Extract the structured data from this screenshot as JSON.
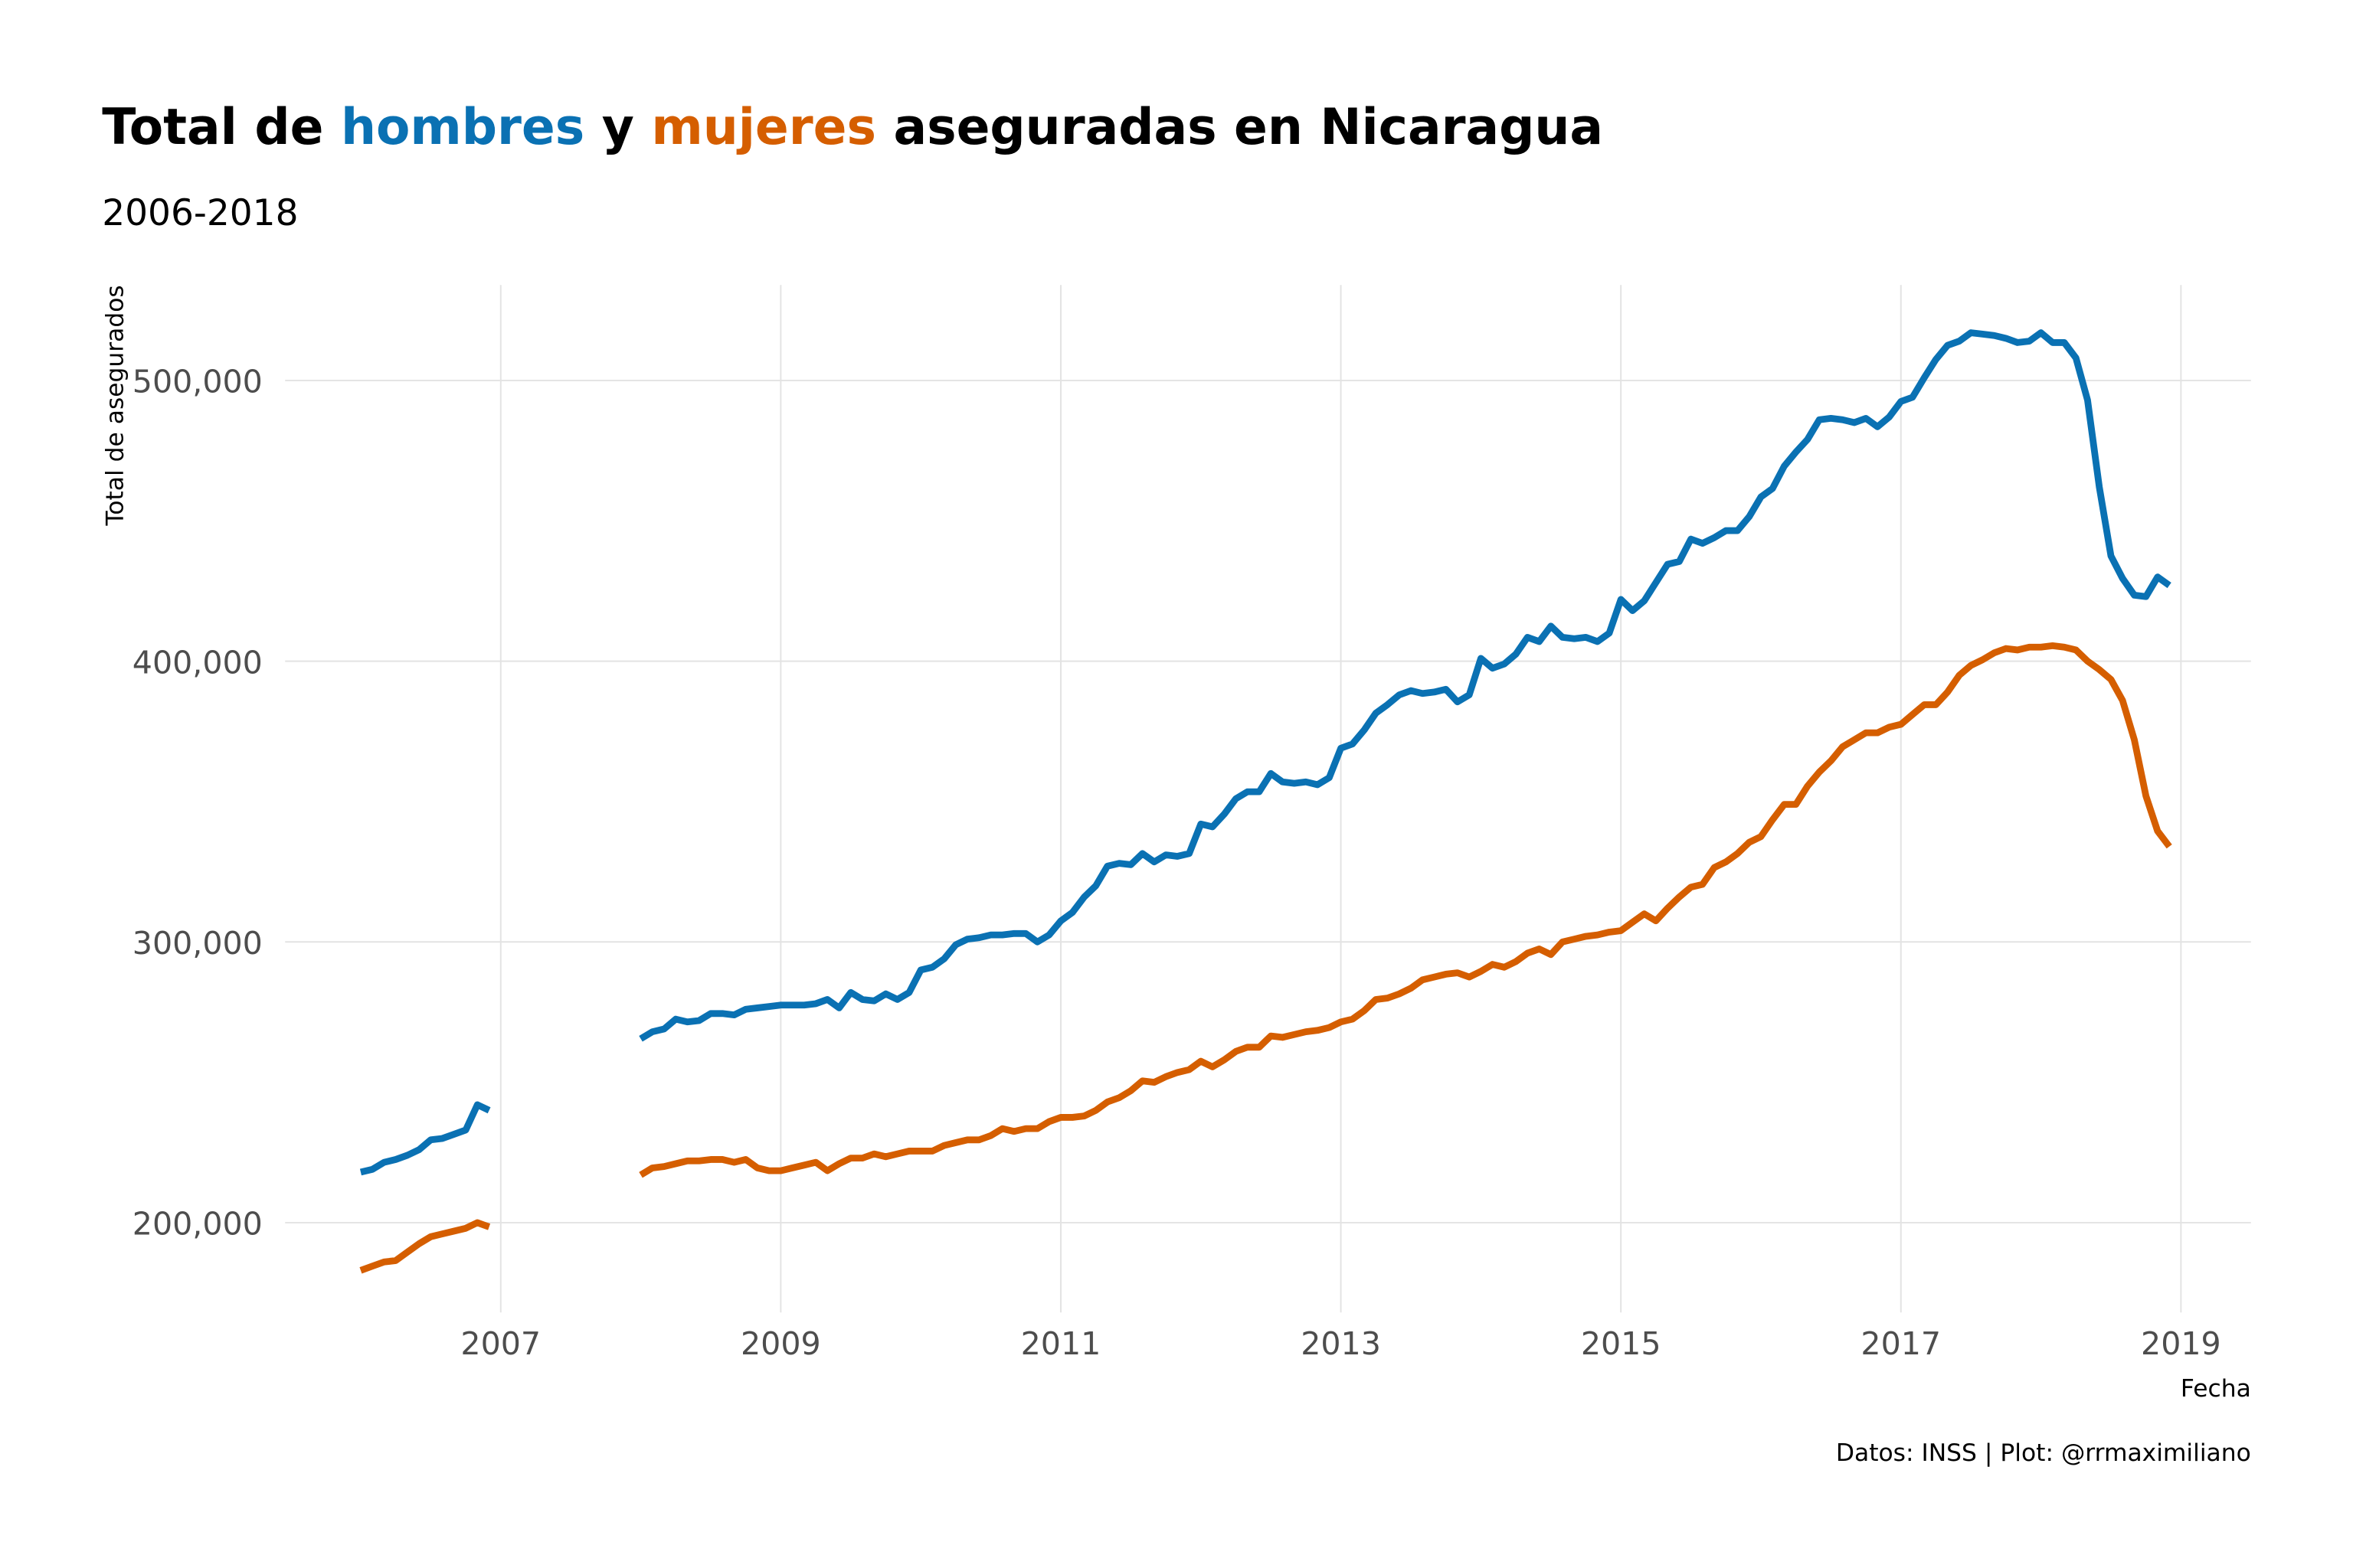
{
  "chart_data": {
    "type": "line",
    "title": [
      "Total de",
      "hombres",
      "y",
      "mujeres",
      "aseguradas en Nicaragua"
    ],
    "subtitle": "2006-2018",
    "y_label": "Total de asegurados",
    "x_label": "Fecha",
    "caption": "Datos: INSS | Plot: @rrmaximiliano",
    "x": [
      2006,
      2006.083,
      2006.167,
      2006.25,
      2006.333,
      2006.417,
      2006.5,
      2006.583,
      2006.667,
      2006.75,
      2006.833,
      2006.917,
      2007,
      2007.083,
      2007.167,
      2007.25,
      2007.333,
      2007.417,
      2007.5,
      2007.583,
      2007.667,
      2007.75,
      2007.833,
      2007.917,
      2008,
      2008.083,
      2008.167,
      2008.25,
      2008.333,
      2008.417,
      2008.5,
      2008.583,
      2008.667,
      2008.75,
      2008.833,
      2008.917,
      2009,
      2009.083,
      2009.167,
      2009.25,
      2009.333,
      2009.417,
      2009.5,
      2009.583,
      2009.667,
      2009.75,
      2009.833,
      2009.917,
      2010,
      2010.083,
      2010.167,
      2010.25,
      2010.333,
      2010.417,
      2010.5,
      2010.583,
      2010.667,
      2010.75,
      2010.833,
      2010.917,
      2011,
      2011.083,
      2011.167,
      2011.25,
      2011.333,
      2011.417,
      2011.5,
      2011.583,
      2011.667,
      2011.75,
      2011.833,
      2011.917,
      2012,
      2012.083,
      2012.167,
      2012.25,
      2012.333,
      2012.417,
      2012.5,
      2012.583,
      2012.667,
      2012.75,
      2012.833,
      2012.917,
      2013,
      2013.083,
      2013.167,
      2013.25,
      2013.333,
      2013.417,
      2013.5,
      2013.583,
      2013.667,
      2013.75,
      2013.833,
      2013.917,
      2014,
      2014.083,
      2014.167,
      2014.25,
      2014.333,
      2014.417,
      2014.5,
      2014.583,
      2014.667,
      2014.75,
      2014.833,
      2014.917,
      2015,
      2015.083,
      2015.167,
      2015.25,
      2015.333,
      2015.417,
      2015.5,
      2015.583,
      2015.667,
      2015.75,
      2015.833,
      2015.917,
      2016,
      2016.083,
      2016.167,
      2016.25,
      2016.333,
      2016.417,
      2016.5,
      2016.583,
      2016.667,
      2016.75,
      2016.833,
      2016.917,
      2017,
      2017.083,
      2017.167,
      2017.25,
      2017.333,
      2017.417,
      2017.5,
      2017.583,
      2017.667,
      2017.75,
      2017.833,
      2017.917,
      2018,
      2018.083,
      2018.167,
      2018.25,
      2018.333,
      2018.417,
      2018.5,
      2018.583,
      2018.667,
      2018.75,
      2018.833,
      2018.917
    ],
    "series": [
      {
        "color": "#0a71b3",
        "values": [
          218000,
          219000,
          221500,
          222500,
          224000,
          226000,
          229500,
          230000,
          231500,
          233000,
          242000,
          240000,
          null,
          null,
          null,
          null,
          null,
          null,
          null,
          null,
          null,
          null,
          null,
          null,
          265500,
          268000,
          269000,
          272500,
          271500,
          272000,
          274500,
          274500,
          274000,
          276000,
          276500,
          277000,
          277500,
          277500,
          277500,
          278000,
          279500,
          276500,
          282000,
          279500,
          279000,
          281500,
          279500,
          282000,
          290000,
          291000,
          294000,
          299000,
          301000,
          301500,
          302500,
          302500,
          303000,
          303000,
          300000,
          302500,
          307500,
          310500,
          316000,
          320000,
          327000,
          328000,
          327500,
          331500,
          328500,
          331000,
          330500,
          331500,
          342000,
          341000,
          345500,
          351000,
          353500,
          353500,
          360000,
          357000,
          356500,
          357000,
          356000,
          358500,
          369000,
          370500,
          375500,
          381500,
          384500,
          388000,
          389500,
          388500,
          389000,
          390000,
          385500,
          388000,
          401000,
          397500,
          399000,
          402500,
          408500,
          407000,
          412500,
          408500,
          408000,
          408500,
          407000,
          410000,
          422000,
          418000,
          421500,
          428000,
          434500,
          435500,
          443500,
          442000,
          444000,
          446500,
          446500,
          451500,
          458500,
          461500,
          469500,
          474500,
          479000,
          486000,
          486500,
          486000,
          485000,
          486500,
          483500,
          487000,
          492500,
          494000,
          501000,
          507500,
          512500,
          514000,
          517000,
          516500,
          516000,
          515000,
          513500,
          514000,
          517000,
          513500,
          513500,
          508000,
          493000,
          462000,
          437500,
          429500,
          423500,
          423000,
          430000,
          427000
        ]
      },
      {
        "color": "#d55e00",
        "values": [
          183000,
          184500,
          186000,
          186500,
          189500,
          192500,
          195000,
          196000,
          197000,
          198000,
          200000,
          198500,
          null,
          null,
          null,
          null,
          null,
          null,
          null,
          null,
          null,
          null,
          null,
          null,
          217000,
          219500,
          220000,
          221000,
          222000,
          222000,
          222500,
          222500,
          221500,
          222500,
          219500,
          218500,
          218500,
          219500,
          220500,
          221500,
          218500,
          221000,
          223000,
          223000,
          224500,
          223500,
          224500,
          225500,
          225500,
          225500,
          227500,
          228500,
          229500,
          229500,
          231000,
          233500,
          232500,
          233500,
          233500,
          236000,
          237500,
          237500,
          238000,
          240000,
          243000,
          244500,
          247000,
          250500,
          250000,
          252000,
          253500,
          254500,
          257500,
          255500,
          258000,
          261000,
          262500,
          262500,
          266500,
          266000,
          267000,
          268000,
          268500,
          269500,
          271500,
          272500,
          275500,
          279500,
          280000,
          281500,
          283500,
          286500,
          287500,
          288500,
          289000,
          287500,
          289500,
          292000,
          291000,
          293000,
          296000,
          297500,
          295500,
          300000,
          301000,
          302000,
          302500,
          303500,
          304000,
          307000,
          310000,
          307500,
          312000,
          316000,
          319500,
          320500,
          326500,
          328500,
          331500,
          335500,
          337500,
          343500,
          349000,
          349000,
          355500,
          360500,
          364500,
          369500,
          372000,
          374500,
          374500,
          376500,
          377500,
          381000,
          384500,
          384500,
          389000,
          395000,
          398500,
          400500,
          403000,
          404500,
          404000,
          405000,
          405000,
          405500,
          405000,
          404000,
          400000,
          397000,
          393500,
          386000,
          372000,
          352000,
          339500,
          334000
        ]
      }
    ],
    "xlim": [
      2005.46,
      2019.5
    ],
    "xticks": [
      2007,
      2009,
      2011,
      2013,
      2015,
      2017,
      2019
    ],
    "ylim": [
      168000,
      534000
    ],
    "yticks": [
      {
        "value": 200000,
        "label": "200,000"
      },
      {
        "value": 300000,
        "label": "300,000"
      },
      {
        "value": 400000,
        "label": "400,000"
      },
      {
        "value": 500000,
        "label": "500,000"
      }
    ],
    "grid": true
  }
}
